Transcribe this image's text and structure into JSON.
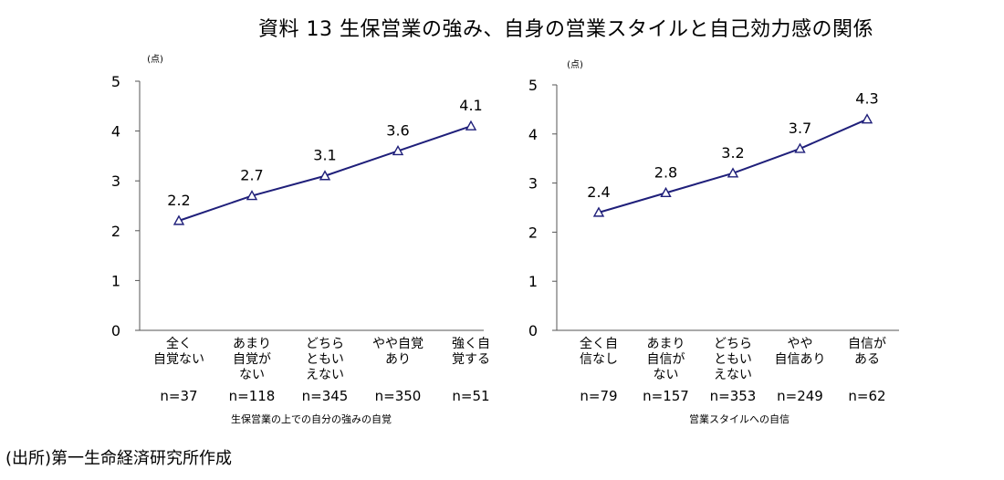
{
  "title": "資料 13 生保営業の強み、自身の営業スタイルと自己効力感の関係",
  "source": "(出所)第一生命経済研究所作成",
  "colors": {
    "line": "#1f1f7a",
    "axis": "#555555"
  },
  "chart_data": [
    {
      "type": "line",
      "unit_label": "(点)",
      "xlabel": "生保営業の上での自分の強みの自覚",
      "ylim": [
        0,
        5
      ],
      "yticks": [
        0,
        1,
        2,
        3,
        4,
        5
      ],
      "categories": [
        [
          "全く",
          "自覚ない"
        ],
        [
          "あまり",
          "自覚が",
          "ない"
        ],
        [
          "どちら",
          "ともい",
          "えない"
        ],
        [
          "やや自覚",
          "あり"
        ],
        [
          "強く自",
          "覚する"
        ]
      ],
      "n_labels": [
        "n=37",
        "n=118",
        "n=345",
        "n=350",
        "n=51"
      ],
      "values": [
        2.2,
        2.7,
        3.1,
        3.6,
        4.1
      ],
      "value_labels": [
        "2.2",
        "2.7",
        "3.1",
        "3.6",
        "4.1"
      ]
    },
    {
      "type": "line",
      "unit_label": "(点)",
      "xlabel": "営業スタイルへの自信",
      "ylim": [
        0,
        5
      ],
      "yticks": [
        0,
        1,
        2,
        3,
        4,
        5
      ],
      "categories": [
        [
          "全く自",
          "信なし"
        ],
        [
          "あまり",
          "自信が",
          "ない"
        ],
        [
          "どちら",
          "ともい",
          "えない"
        ],
        [
          "やや",
          "自信あり"
        ],
        [
          "自信が",
          "ある"
        ]
      ],
      "n_labels": [
        "n=79",
        "n=157",
        "n=353",
        "n=249",
        "n=62"
      ],
      "values": [
        2.4,
        2.8,
        3.2,
        3.7,
        4.3
      ],
      "value_labels": [
        "2.4",
        "2.8",
        "3.2",
        "3.7",
        "4.3"
      ]
    }
  ]
}
